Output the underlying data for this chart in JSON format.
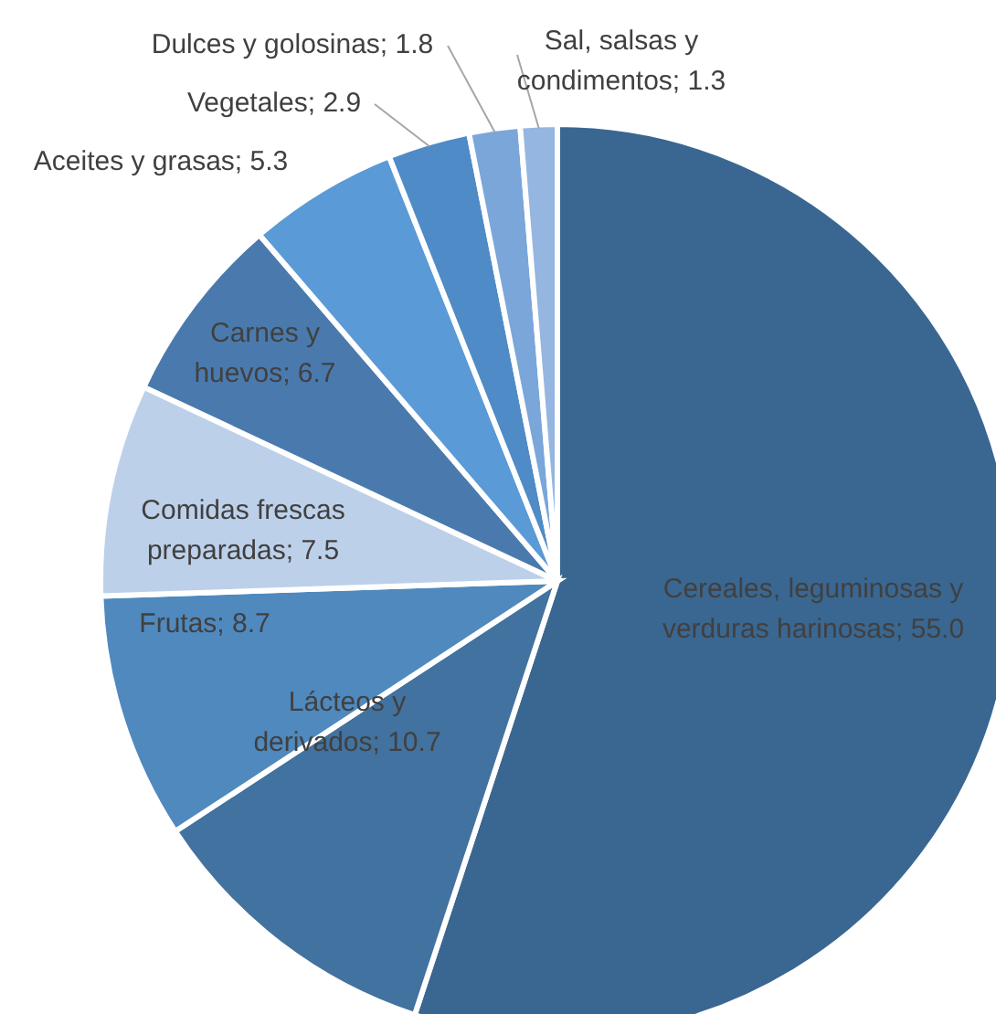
{
  "chart_data": {
    "type": "pie",
    "categories": [
      "Cereales, leguminosas y verduras harinosas",
      "Lácteos y derivados",
      "Frutas",
      "Comidas frescas preparadas",
      "Carnes y huevos",
      "Aceites y grasas",
      "Vegetales",
      "Dulces y golosinas",
      "Sal, salsas y condimentos"
    ],
    "values": [
      55.0,
      10.7,
      8.7,
      7.5,
      6.7,
      5.3,
      2.9,
      1.8,
      1.3
    ],
    "colors": [
      "#3a6791",
      "#42729f",
      "#4f89be",
      "#bdd0ea",
      "#4a7aad",
      "#5a9ad6",
      "#4f8bc6",
      "#7aa6da",
      "#94b6e0"
    ],
    "value_labels": [
      "55.0",
      "10.7",
      "8.7",
      "7.5",
      "6.7",
      "5.3",
      "2.9",
      "1.8",
      "1.3"
    ]
  }
}
